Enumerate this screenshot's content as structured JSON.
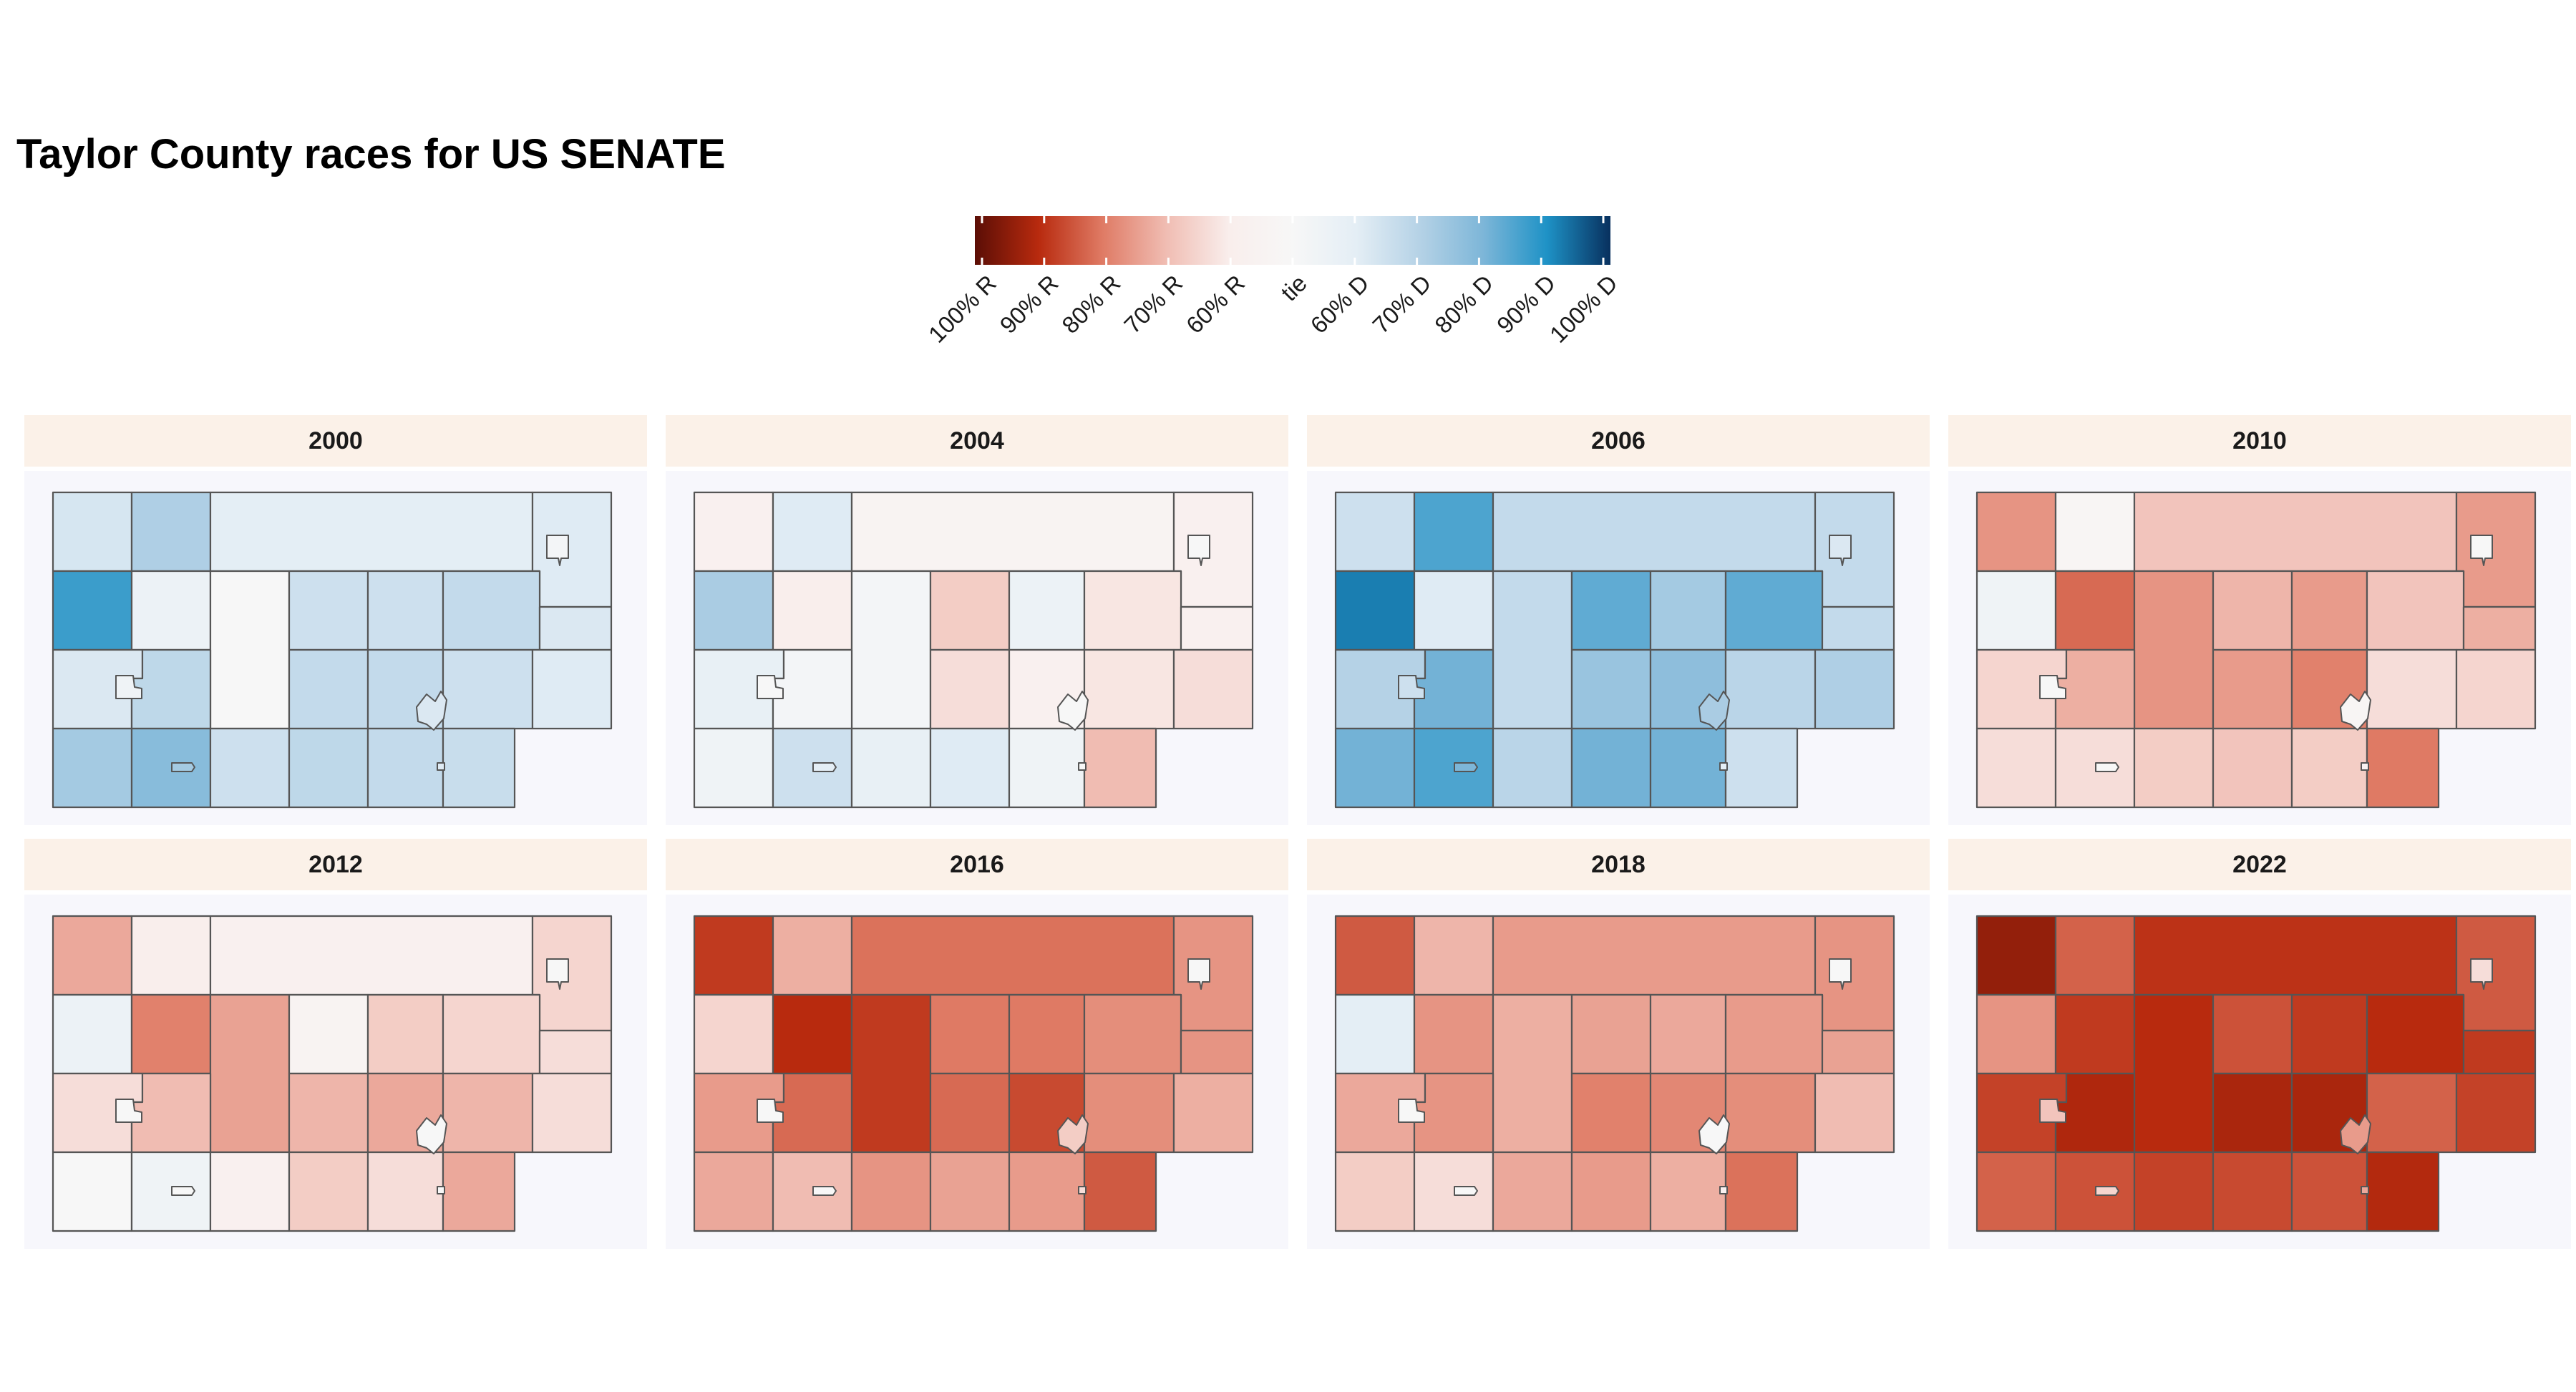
{
  "title": "Taylor County races for US SENATE",
  "legend": {
    "labels": [
      "100% R",
      "90% R",
      "80% R",
      "70% R",
      "60% R",
      "tie",
      "60% D",
      "70% D",
      "80% D",
      "90% D",
      "100% D"
    ],
    "colors": [
      "#5b0e06",
      "#b82a0e",
      "#df7a64",
      "#f0bcb2",
      "#f9eeec",
      "#f7f7f7",
      "#e4eef5",
      "#b5d2e6",
      "#7db6d8",
      "#1e92c6",
      "#08305e"
    ]
  },
  "units": [
    {
      "id": "A"
    },
    {
      "id": "B"
    },
    {
      "id": "C"
    },
    {
      "id": "D"
    },
    {
      "id": "E"
    },
    {
      "id": "F"
    },
    {
      "id": "G"
    },
    {
      "id": "H"
    },
    {
      "id": "I"
    },
    {
      "id": "J"
    },
    {
      "id": "K"
    },
    {
      "id": "L"
    },
    {
      "id": "M"
    },
    {
      "id": "N"
    },
    {
      "id": "O"
    },
    {
      "id": "P"
    },
    {
      "id": "Q"
    },
    {
      "id": "R"
    },
    {
      "id": "S"
    },
    {
      "id": "T"
    },
    {
      "id": "U"
    },
    {
      "id": "V"
    },
    {
      "id": "W"
    }
  ],
  "panels": [
    {
      "year": "2000",
      "values": [
        0.58,
        0.66,
        0.55,
        0.56,
        0.82,
        0.53,
        0.5,
        0.6,
        0.6,
        0.62,
        0.57,
        0.57,
        0.63,
        0.62,
        0.62,
        0.6,
        0.56,
        0.68,
        0.73,
        0.6,
        0.63,
        0.62,
        0.61
      ]
    },
    {
      "year": "2004",
      "values": [
        0.47,
        0.56,
        0.48,
        0.47,
        0.67,
        0.46,
        0.51,
        0.42,
        0.53,
        0.45,
        0.47,
        0.54,
        0.51,
        0.44,
        0.47,
        0.45,
        0.44,
        0.52,
        0.6,
        0.54,
        0.56,
        0.52,
        0.4
      ]
    },
    {
      "year": "2006",
      "values": [
        0.6,
        0.8,
        0.62,
        0.62,
        0.88,
        0.56,
        0.62,
        0.78,
        0.68,
        0.78,
        0.62,
        0.65,
        0.76,
        0.7,
        0.72,
        0.64,
        0.66,
        0.76,
        0.8,
        0.64,
        0.76,
        0.76,
        0.6
      ]
    },
    {
      "year": "2010",
      "values": [
        0.34,
        0.49,
        0.41,
        0.35,
        0.52,
        0.28,
        0.34,
        0.39,
        0.35,
        0.41,
        0.38,
        0.43,
        0.38,
        0.35,
        0.31,
        0.44,
        0.43,
        0.44,
        0.44,
        0.42,
        0.41,
        0.42,
        0.3
      ]
    },
    {
      "year": "2012",
      "values": [
        0.37,
        0.46,
        0.47,
        0.43,
        0.53,
        0.31,
        0.36,
        0.48,
        0.42,
        0.43,
        0.44,
        0.44,
        0.4,
        0.39,
        0.37,
        0.39,
        0.44,
        0.5,
        0.52,
        0.47,
        0.42,
        0.44,
        0.37
      ]
    },
    {
      "year": "2016",
      "values": [
        0.22,
        0.38,
        0.29,
        0.34,
        0.43,
        0.2,
        0.22,
        0.3,
        0.3,
        0.33,
        0.34,
        0.35,
        0.28,
        0.28,
        0.24,
        0.33,
        0.38,
        0.37,
        0.4,
        0.34,
        0.36,
        0.35,
        0.26
      ]
    },
    {
      "year": "2018",
      "values": [
        0.26,
        0.39,
        0.35,
        0.34,
        0.55,
        0.34,
        0.38,
        0.36,
        0.37,
        0.35,
        0.36,
        0.37,
        0.34,
        0.31,
        0.32,
        0.33,
        0.4,
        0.42,
        0.44,
        0.37,
        0.35,
        0.38,
        0.29
      ]
    },
    {
      "year": "2022",
      "values": [
        0.12,
        0.27,
        0.21,
        0.26,
        0.34,
        0.22,
        0.2,
        0.25,
        0.22,
        0.2,
        0.22,
        0.23,
        0.18,
        0.17,
        0.17,
        0.27,
        0.23,
        0.27,
        0.25,
        0.23,
        0.24,
        0.25,
        0.19
      ]
    }
  ]
}
